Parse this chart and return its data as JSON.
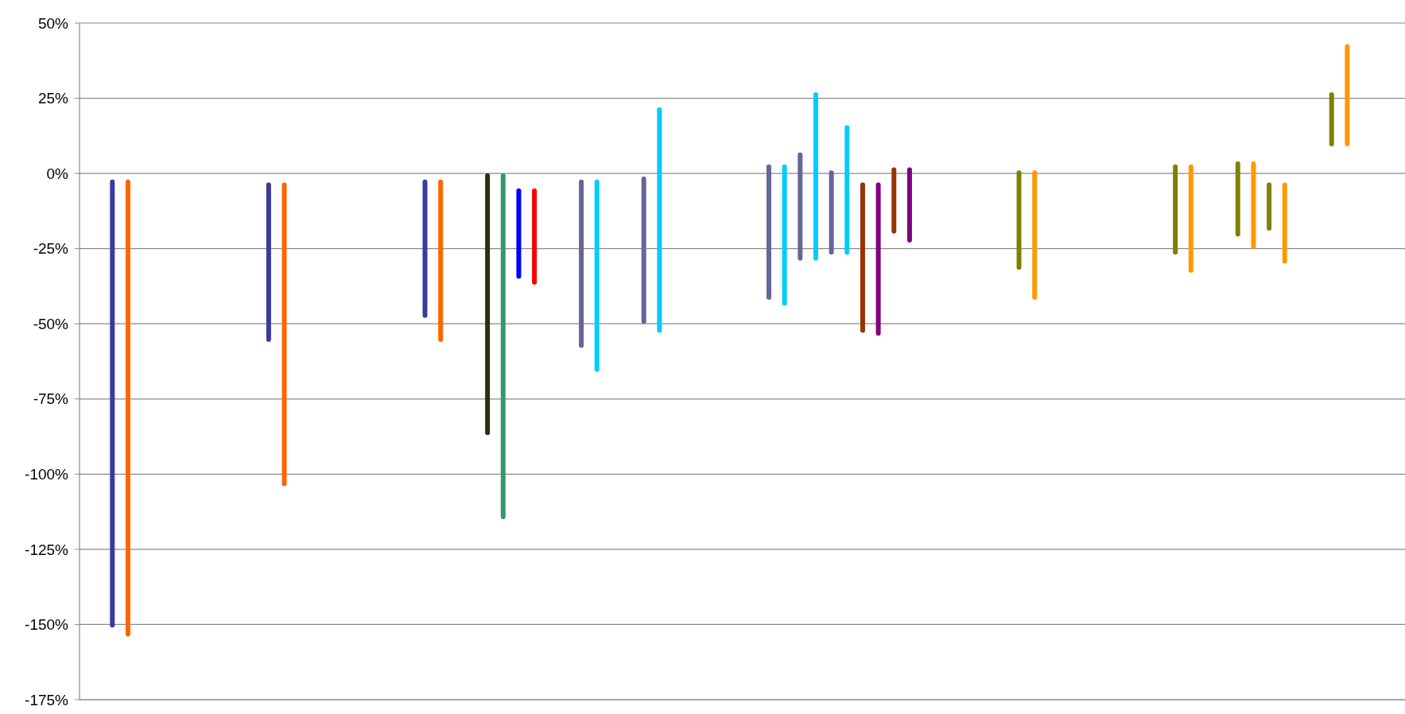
{
  "chart_data": {
    "type": "bar",
    "categories": [
      null,
      null,
      null,
      null,
      null,
      null,
      null,
      null,
      null,
      null,
      null,
      null,
      null,
      null,
      null,
      null,
      null,
      null,
      null,
      null,
      null,
      null,
      null,
      null,
      null,
      null,
      null,
      null,
      null,
      null,
      null,
      null,
      null,
      null,
      null,
      null,
      null,
      null,
      null,
      null,
      null,
      null,
      null,
      null,
      null,
      null,
      null,
      null,
      null,
      null,
      null,
      null,
      null,
      null,
      null,
      null,
      null,
      null,
      null,
      null,
      null,
      null,
      null,
      null,
      null,
      null,
      null,
      null,
      null,
      null,
      null,
      null,
      null,
      null,
      null,
      null,
      null,
      null,
      null,
      null,
      null,
      null,
      null,
      null,
      null,
      null
    ],
    "values": [
      null,
      null,
      149,
      152,
      null,
      null,
      null,
      null,
      null,
      null,
      null,
      null,
      53,
      101,
      null,
      null,
      null,
      null,
      null,
      null,
      null,
      null,
      46,
      54,
      null,
      null,
      87,
      115,
      30,
      32,
      null,
      null,
      56,
      64,
      null,
      null,
      49,
      75,
      null,
      null,
      null,
      null,
      null,
      null,
      45,
      47,
      36,
      56,
      28,
      43,
      50,
      51,
      22,
      25,
      null,
      null,
      null,
      null,
      null,
      null,
      33,
      43,
      null,
      null,
      null,
      null,
      null,
      null,
      null,
      null,
      30,
      36,
      null,
      null,
      25,
      29,
      16,
      27,
      null,
      null,
      18,
      34,
      null,
      null,
      null,
      null
    ],
    "base": [
      null,
      null,
      -151,
      -154,
      null,
      null,
      null,
      null,
      null,
      null,
      null,
      null,
      -56,
      -104,
      null,
      null,
      null,
      null,
      null,
      null,
      null,
      null,
      -48,
      -56,
      null,
      null,
      -87,
      -115,
      -35,
      -37,
      null,
      null,
      -58,
      -66,
      null,
      null,
      -50,
      -53,
      null,
      null,
      null,
      null,
      null,
      null,
      -42,
      -44,
      -29,
      -29,
      -27,
      -27,
      -53,
      -54,
      -20,
      -23,
      null,
      null,
      null,
      null,
      null,
      null,
      -32,
      -42,
      null,
      null,
      null,
      null,
      null,
      null,
      null,
      null,
      -27,
      -33,
      null,
      null,
      -21,
      -25,
      -19,
      -30,
      null,
      null,
      9,
      9,
      null,
      null,
      null,
      null
    ],
    "colors": [
      null,
      null,
      "#3a3a9e",
      "#ff6600",
      null,
      null,
      null,
      null,
      null,
      null,
      null,
      null,
      "#3a3a9e",
      "#ff6600",
      null,
      null,
      null,
      null,
      null,
      null,
      null,
      null,
      "#3a3a9e",
      "#ff6600",
      null,
      null,
      "#2e2e12",
      "#339966",
      "#0000ff",
      "#ff0000",
      null,
      null,
      "#666699",
      "#00ccff",
      null,
      null,
      "#666699",
      "#00ccff",
      null,
      null,
      null,
      null,
      null,
      null,
      "#666699",
      "#00ccff",
      "#666699",
      "#00ccff",
      "#666699",
      "#00ccff",
      "#993300",
      "#800080",
      "#993300",
      "#800080",
      null,
      null,
      null,
      null,
      null,
      null,
      "#808000",
      "#ff9900",
      null,
      null,
      null,
      null,
      null,
      null,
      null,
      null,
      "#808000",
      "#ff9900",
      null,
      null,
      "#808000",
      "#ff9900",
      "#808000",
      "#ff9900",
      null,
      null,
      "#808000",
      "#ff9900",
      null,
      null,
      null,
      null
    ],
    "ylim": [
      -175,
      50
    ],
    "yticks": [
      {
        "value": 50,
        "label": "50%"
      },
      {
        "value": 25,
        "label": "25%"
      },
      {
        "value": 0,
        "label": "0%"
      },
      {
        "value": -25,
        "label": "-25%"
      },
      {
        "value": -50,
        "label": "-50%"
      },
      {
        "value": -75,
        "label": "-75%"
      },
      {
        "value": -100,
        "label": "-100%"
      },
      {
        "value": -125,
        "label": "-125%"
      },
      {
        "value": -150,
        "label": "-150%"
      },
      {
        "value": -175,
        "label": "-175%"
      }
    ],
    "grid": "y",
    "tick_labels": "y"
  }
}
